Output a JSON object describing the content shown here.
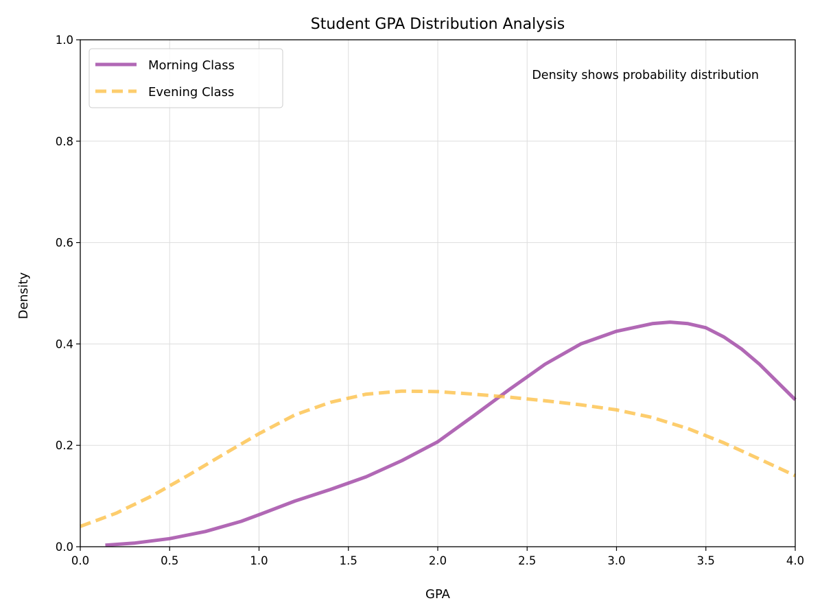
{
  "chart_data": {
    "type": "line",
    "title": "Student GPA Distribution Analysis",
    "xlabel": "GPA",
    "ylabel": "Density",
    "xlim": [
      0.0,
      4.0
    ],
    "ylim": [
      0.0,
      1.0
    ],
    "xticks": [
      "0.0",
      "0.5",
      "1.0",
      "1.5",
      "2.0",
      "2.5",
      "3.0",
      "3.5",
      "4.0"
    ],
    "yticks": [
      "0.0",
      "0.2",
      "0.4",
      "0.6",
      "0.8",
      "1.0"
    ],
    "grid": true,
    "legend_position": "top-left",
    "annotation": "Density shows probability distribution",
    "series": [
      {
        "name": "Morning Class",
        "color": "#9B3DA0",
        "style": "solid",
        "x": [
          0.14,
          0.3,
          0.5,
          0.7,
          0.9,
          1.0,
          1.2,
          1.4,
          1.6,
          1.8,
          2.0,
          2.2,
          2.4,
          2.6,
          2.8,
          3.0,
          3.2,
          3.3,
          3.4,
          3.5,
          3.6,
          3.7,
          3.8,
          3.9,
          4.0
        ],
        "y": [
          0.003,
          0.007,
          0.016,
          0.03,
          0.05,
          0.063,
          0.09,
          0.113,
          0.138,
          0.17,
          0.207,
          0.258,
          0.31,
          0.36,
          0.4,
          0.425,
          0.44,
          0.443,
          0.44,
          0.432,
          0.414,
          0.39,
          0.36,
          0.325,
          0.29
        ]
      },
      {
        "name": "Evening Class",
        "color": "#FDBF44",
        "style": "dashed",
        "x": [
          0.0,
          0.2,
          0.4,
          0.6,
          0.8,
          1.0,
          1.2,
          1.4,
          1.6,
          1.8,
          2.0,
          2.2,
          2.4,
          2.6,
          2.8,
          3.0,
          3.2,
          3.4,
          3.6,
          3.8,
          4.0
        ],
        "y": [
          0.04,
          0.066,
          0.1,
          0.14,
          0.182,
          0.223,
          0.26,
          0.285,
          0.301,
          0.307,
          0.306,
          0.301,
          0.295,
          0.288,
          0.28,
          0.27,
          0.255,
          0.233,
          0.205,
          0.173,
          0.14
        ]
      }
    ]
  }
}
